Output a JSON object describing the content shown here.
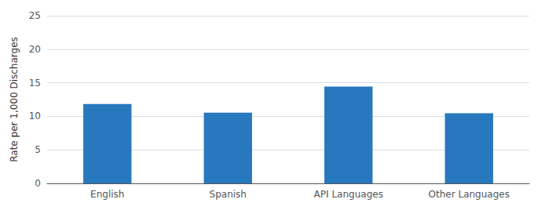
{
  "chart_data": {
    "type": "bar",
    "categories": [
      "English",
      "Spanish",
      "API Languages",
      "Other Languages"
    ],
    "values": [
      11.84,
      10.54,
      14.44,
      10.47
    ],
    "color": "#2878BE",
    "ylabel": "Rate per 1,000 Discharges",
    "ylim": [
      0,
      25
    ],
    "yticks": [
      0,
      5,
      10,
      15,
      20,
      25
    ],
    "grid": true
  }
}
